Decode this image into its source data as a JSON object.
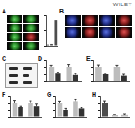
{
  "brand": "WILEY",
  "panel_labels": [
    "A",
    "B",
    "C",
    "D",
    "E",
    "F",
    "G",
    "H"
  ],
  "chart_data": [
    {
      "type": "bar",
      "categories": [
        null,
        null,
        null
      ],
      "values": [
        0.4,
        0.6,
        8.5
      ],
      "color": "#4d4d4d",
      "ylim": [
        0,
        10
      ],
      "yticks": [
        0,
        5,
        10
      ],
      "grid": false,
      "tick_labels": false
    },
    {
      "type": "bar",
      "categories": [
        null,
        null
      ],
      "series": [
        {
          "color": "#bdbdbd",
          "values": [
            1,
            1
          ],
          "errors": [
            0.1,
            0.15
          ]
        },
        {
          "color": "#333333",
          "values": [
            0.55,
            0.45
          ],
          "errors": [
            0.1,
            0.1
          ]
        }
      ],
      "ylim": [
        0,
        1.5
      ],
      "yticks": [
        0,
        0.5,
        1,
        1.5
      ],
      "grid": false,
      "tick_labels": false
    },
    {
      "type": "bar",
      "categories": [
        null,
        null
      ],
      "series": [
        {
          "color": "#bdbdbd",
          "values": [
            1,
            1
          ],
          "errors": [
            0.12,
            0.1
          ]
        },
        {
          "color": "#333333",
          "values": [
            0.5,
            0.4
          ],
          "errors": [
            0.08,
            0.1
          ]
        }
      ],
      "ylim": [
        0,
        1.5
      ],
      "yticks": [
        0,
        0.5,
        1,
        1.5
      ],
      "grid": false,
      "tick_labels": false
    },
    {
      "type": "bar",
      "categories": [
        null,
        null
      ],
      "series": [
        {
          "color": "#bdbdbd",
          "values": [
            1,
            1
          ],
          "errors": [
            0.15,
            0.12
          ]
        },
        {
          "color": "#333333",
          "values": [
            0.7,
            0.8
          ],
          "errors": [
            0.1,
            0.15
          ]
        }
      ],
      "ylim": [
        0,
        1.5
      ],
      "yticks": [
        0,
        0.5,
        1,
        1.5
      ],
      "grid": false,
      "tick_labels": false
    },
    {
      "type": "bar",
      "categories": [
        null,
        null
      ],
      "series": [
        {
          "color": "#bdbdbd",
          "values": [
            1,
            1.1
          ],
          "errors": [
            0.1,
            0.12
          ]
        },
        {
          "color": "#333333",
          "values": [
            0.5,
            0.6
          ],
          "errors": [
            0.1,
            0.1
          ]
        }
      ],
      "ylim": [
        0,
        1.5
      ],
      "yticks": [
        0,
        0.5,
        1,
        1.5
      ],
      "grid": false,
      "tick_labels": false
    },
    {
      "type": "bar",
      "categories": [
        null,
        null,
        null
      ],
      "values": [
        1,
        0.15,
        0.2
      ],
      "errors": [
        0.12,
        0.05,
        0.05
      ],
      "colors": [
        "#4d4d4d",
        "#bdbdbd",
        "#bdbdbd"
      ],
      "ylim": [
        0,
        1.5
      ],
      "yticks": [
        0,
        0.5,
        1,
        1.5
      ],
      "grid": false,
      "tick_labels": false
    }
  ]
}
